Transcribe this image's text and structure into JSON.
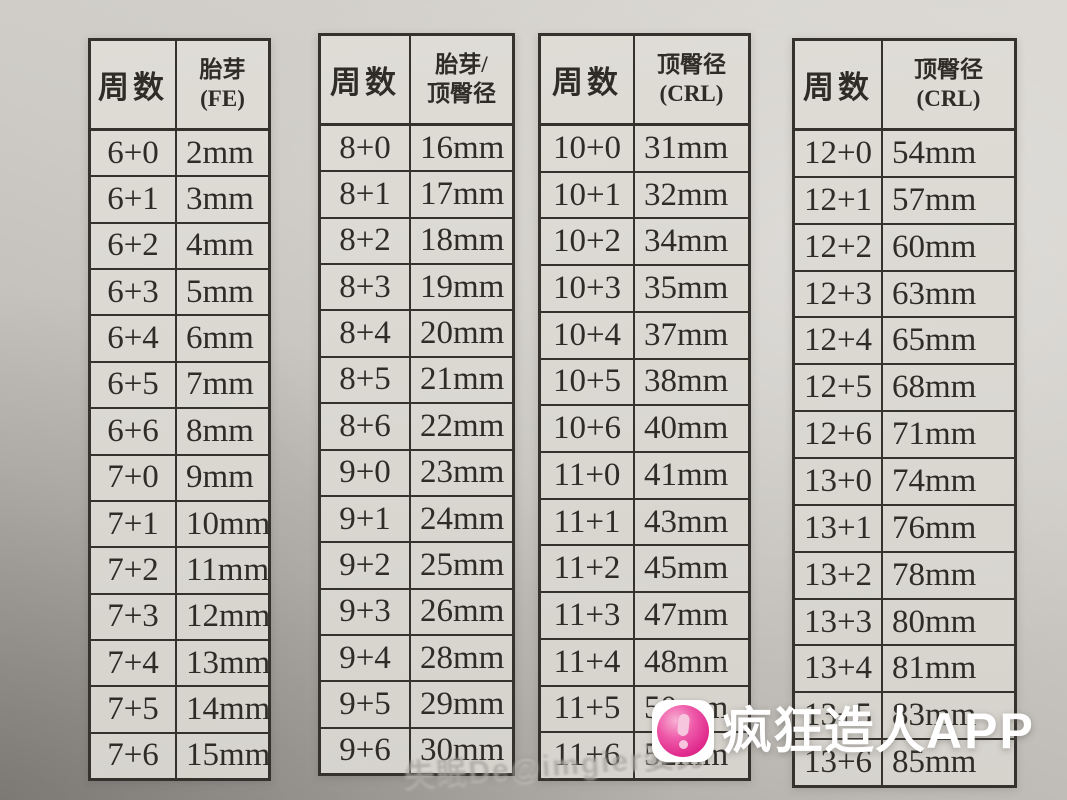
{
  "colors": {
    "logo_pink": "#e02a8c",
    "paper": "#dad7d1",
    "table_line": "#35322e",
    "watermark_white": "#ffffff"
  },
  "tables": [
    {
      "week_header": "周数",
      "measure_header_line1": "胎芽",
      "measure_header_line2": "(FE)",
      "rows": [
        {
          "week": "6+0",
          "value": "2mm"
        },
        {
          "week": "6+1",
          "value": "3mm"
        },
        {
          "week": "6+2",
          "value": "4mm"
        },
        {
          "week": "6+3",
          "value": "5mm"
        },
        {
          "week": "6+4",
          "value": "6mm"
        },
        {
          "week": "6+5",
          "value": "7mm"
        },
        {
          "week": "6+6",
          "value": "8mm"
        },
        {
          "week": "7+0",
          "value": "9mm"
        },
        {
          "week": "7+1",
          "value": "10mm"
        },
        {
          "week": "7+2",
          "value": "11mm"
        },
        {
          "week": "7+3",
          "value": "12mm"
        },
        {
          "week": "7+4",
          "value": "13mm"
        },
        {
          "week": "7+5",
          "value": "14mm"
        },
        {
          "week": "7+6",
          "value": "15mm"
        }
      ]
    },
    {
      "week_header": "周数",
      "measure_header_line1": "胎芽/",
      "measure_header_line2": "顶臀径",
      "rows": [
        {
          "week": "8+0",
          "value": "16mm"
        },
        {
          "week": "8+1",
          "value": "17mm"
        },
        {
          "week": "8+2",
          "value": "18mm"
        },
        {
          "week": "8+3",
          "value": "19mm"
        },
        {
          "week": "8+4",
          "value": "20mm"
        },
        {
          "week": "8+5",
          "value": "21mm"
        },
        {
          "week": "8+6",
          "value": "22mm"
        },
        {
          "week": "9+0",
          "value": "23mm"
        },
        {
          "week": "9+1",
          "value": "24mm"
        },
        {
          "week": "9+2",
          "value": "25mm"
        },
        {
          "week": "9+3",
          "value": "26mm"
        },
        {
          "week": "9+4",
          "value": "28mm"
        },
        {
          "week": "9+5",
          "value": "29mm"
        },
        {
          "week": "9+6",
          "value": "30mm"
        }
      ]
    },
    {
      "week_header": "周数",
      "measure_header_line1": "顶臀径",
      "measure_header_line2": "(CRL)",
      "rows": [
        {
          "week": "10+0",
          "value": "31mm"
        },
        {
          "week": "10+1",
          "value": "32mm"
        },
        {
          "week": "10+2",
          "value": "34mm"
        },
        {
          "week": "10+3",
          "value": "35mm"
        },
        {
          "week": "10+4",
          "value": "37mm"
        },
        {
          "week": "10+5",
          "value": "38mm"
        },
        {
          "week": "10+6",
          "value": "40mm"
        },
        {
          "week": "11+0",
          "value": "41mm"
        },
        {
          "week": "11+1",
          "value": "43mm"
        },
        {
          "week": "11+2",
          "value": "45mm"
        },
        {
          "week": "11+3",
          "value": "47mm"
        },
        {
          "week": "11+4",
          "value": "48mm"
        },
        {
          "week": "11+5",
          "value": "50mm"
        },
        {
          "week": "11+6",
          "value": "52mm"
        }
      ]
    },
    {
      "week_header": "周数",
      "measure_header_line1": "顶臀径",
      "measure_header_line2": "(CRL)",
      "rows": [
        {
          "week": "12+0",
          "value": "54mm"
        },
        {
          "week": "12+1",
          "value": "57mm"
        },
        {
          "week": "12+2",
          "value": "60mm"
        },
        {
          "week": "12+3",
          "value": "63mm"
        },
        {
          "week": "12+4",
          "value": "65mm"
        },
        {
          "week": "12+5",
          "value": "68mm"
        },
        {
          "week": "12+6",
          "value": "71mm"
        },
        {
          "week": "13+0",
          "value": "74mm"
        },
        {
          "week": "13+1",
          "value": "76mm"
        },
        {
          "week": "13+2",
          "value": "78mm"
        },
        {
          "week": "13+3",
          "value": "80mm"
        },
        {
          "week": "13+4",
          "value": "81mm"
        },
        {
          "week": "13+5",
          "value": "83mm"
        },
        {
          "week": "13+6",
          "value": "85mm"
        }
      ]
    }
  ],
  "app_watermark": {
    "icon": "pink-bubble-logo",
    "name_cn": "疯狂造人",
    "name_en": "APP"
  },
  "faint_watermark_text": "失眠De@imgier姿势"
}
